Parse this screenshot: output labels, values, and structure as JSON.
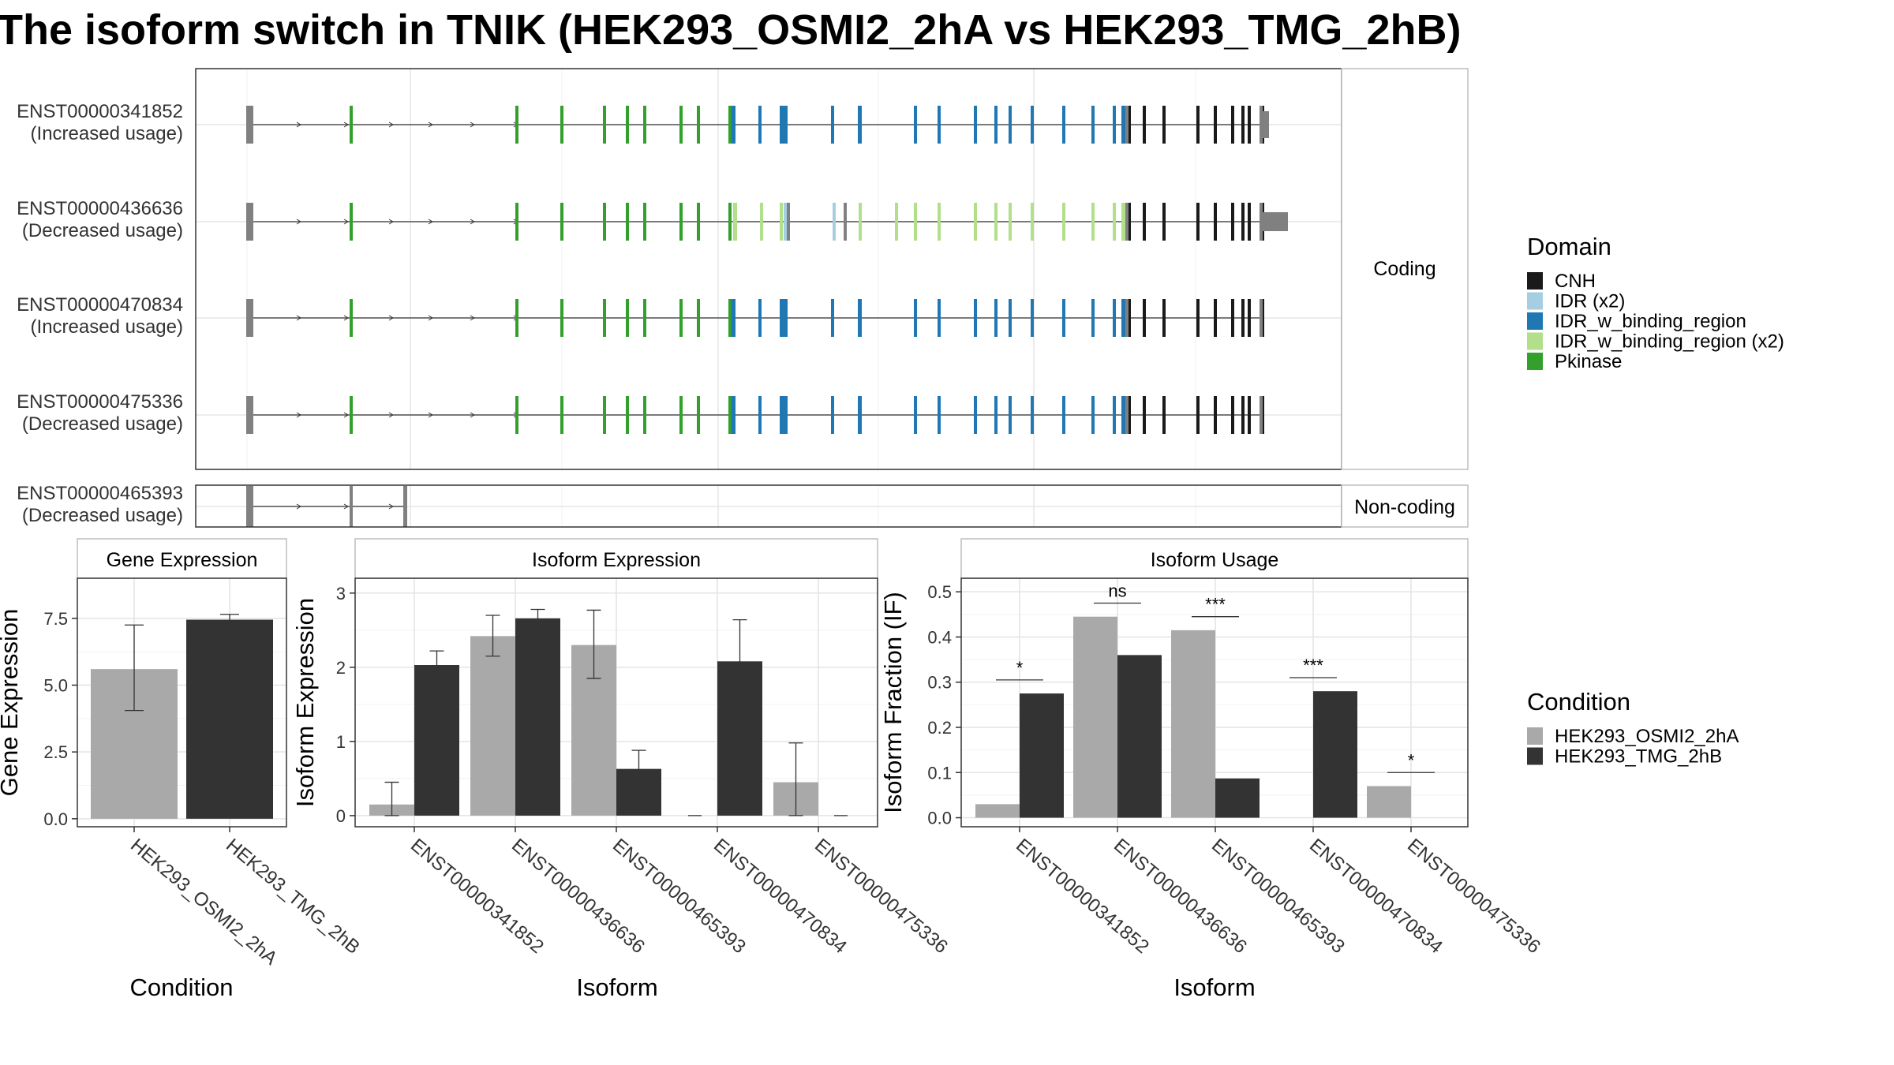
{
  "title": "The isoform switch in TNIK (HEK293_OSMI2_2hA vs HEK293_TMG_2hB)",
  "colors": {
    "CNH": "#1a1a1a",
    "IDR (x2)": "#a6cee3",
    "IDR_w_binding_region": "#1f78b4",
    "IDR_w_binding_region (x2)": "#b2df8a",
    "Pkinase": "#33a02c",
    "noncoding": "#808080",
    "HEK293_OSMI2_2hA": "#a9a9a9",
    "HEK293_TMG_2hB": "#333333"
  },
  "structure": {
    "coding_strip": "Coding",
    "noncoding_strip": "Non-coding",
    "coding_isoforms": [
      {
        "id": "ENST00000341852",
        "usage": "(Increased usage)"
      },
      {
        "id": "ENST00000436636",
        "usage": "(Decreased usage)"
      },
      {
        "id": "ENST00000470834",
        "usage": "(Increased usage)"
      },
      {
        "id": "ENST00000475336",
        "usage": "(Decreased usage)"
      }
    ],
    "noncoding_isoforms": [
      {
        "id": "ENST00000465393",
        "usage": "(Decreased usage)"
      }
    ]
  },
  "legends": {
    "domain_title": "Domain",
    "domains": [
      "CNH",
      "IDR (x2)",
      "IDR_w_binding_region",
      "IDR_w_binding_region (x2)",
      "Pkinase"
    ],
    "condition_title": "Condition",
    "conditions": [
      "HEK293_OSMI2_2hA",
      "HEK293_TMG_2hB"
    ]
  },
  "chart_data": [
    {
      "type": "bar",
      "title": "Gene Expression",
      "xlabel": "Condition",
      "ylabel": "Gene Expression",
      "categories": [
        "HEK293_OSMI2_2hA",
        "HEK293_TMG_2hB"
      ],
      "values": [
        5.6,
        7.45
      ],
      "error_low": [
        4.05,
        7.3
      ],
      "error_high": [
        7.25,
        7.65
      ],
      "yticks": [
        "0.0",
        "2.5",
        "5.0",
        "7.5"
      ],
      "ylim": [
        -0.3,
        9.0
      ]
    },
    {
      "type": "bar",
      "title": "Isoform Expression",
      "xlabel": "Isoform",
      "ylabel": "Isoform Expression",
      "categories": [
        "ENST00000341852",
        "ENST00000436636",
        "ENST00000465393",
        "ENST00000470834",
        "ENST00000475336"
      ],
      "series": [
        {
          "name": "HEK293_OSMI2_2hA",
          "values": [
            0.15,
            2.42,
            2.3,
            0.0,
            0.45
          ],
          "error_low": [
            0.0,
            2.15,
            1.85,
            0.0,
            0.0
          ],
          "error_high": [
            0.45,
            2.7,
            2.77,
            0.0,
            0.98
          ]
        },
        {
          "name": "HEK293_TMG_2hB",
          "values": [
            2.03,
            2.66,
            0.63,
            2.08,
            0.0
          ],
          "error_low": [
            1.85,
            2.55,
            0.35,
            1.52,
            0.0
          ],
          "error_high": [
            2.22,
            2.78,
            0.88,
            2.64,
            0.0
          ]
        }
      ],
      "yticks": [
        "0",
        "1",
        "2",
        "3"
      ],
      "ylim": [
        -0.15,
        3.2
      ]
    },
    {
      "type": "bar",
      "title": "Isoform Usage",
      "xlabel": "Isoform",
      "ylabel": "Isoform Fraction (IF)",
      "categories": [
        "ENST00000341852",
        "ENST00000436636",
        "ENST00000465393",
        "ENST00000470834",
        "ENST00000475336"
      ],
      "series": [
        {
          "name": "HEK293_OSMI2_2hA",
          "values": [
            0.03,
            0.445,
            0.415,
            0.0,
            0.07
          ]
        },
        {
          "name": "HEK293_TMG_2hB",
          "values": [
            0.275,
            0.36,
            0.087,
            0.28,
            0.0
          ]
        }
      ],
      "significance": [
        "*",
        "ns",
        "***",
        "***",
        "*"
      ],
      "yticks": [
        "0.0",
        "0.1",
        "0.2",
        "0.3",
        "0.4",
        "0.5"
      ],
      "ylim": [
        -0.02,
        0.53
      ]
    }
  ]
}
